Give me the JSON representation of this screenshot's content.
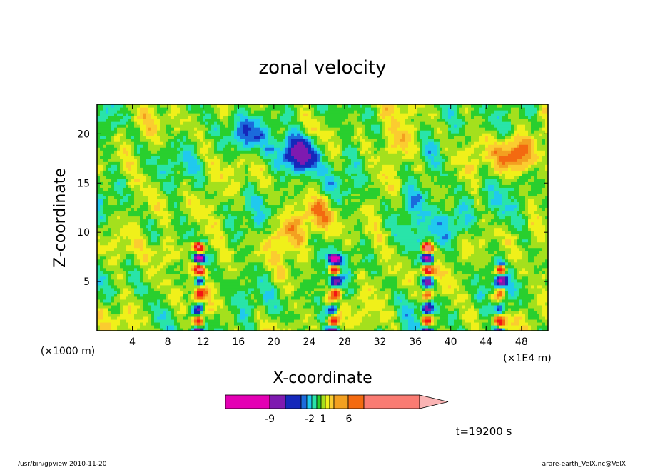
{
  "chart_data": {
    "type": "heatmap",
    "title": "zonal velocity",
    "xlabel": "X-coordinate",
    "ylabel": "Z-coordinate",
    "x_unit_left": "(×1000 m)",
    "x_unit_right": "(×1E4 m)",
    "xlim": [
      0,
      51
    ],
    "ylim": [
      0,
      23
    ],
    "x_ticks": [
      4,
      8,
      12,
      16,
      20,
      24,
      28,
      32,
      36,
      40,
      44,
      48
    ],
    "y_ticks": [
      5,
      10,
      15,
      20
    ],
    "colorbar": {
      "tick_labels": [
        "-9",
        "-2",
        "1",
        "6"
      ],
      "colors": [
        "#e400b4",
        "#7e1ab0",
        "#1528bb",
        "#1b6bdc",
        "#20c9ee",
        "#29e4a9",
        "#29cf2e",
        "#a4e01d",
        "#f0f01a",
        "#fbcc30",
        "#f3a020",
        "#f36a10",
        "#f41515",
        "#fa7b72"
      ],
      "overflow_color": "#fab4b4"
    },
    "features": [
      {
        "name": "vertical plume",
        "x": 11.5,
        "z_top": 9,
        "min_value": -9,
        "max_value": 9
      },
      {
        "name": "vertical plume",
        "x": 26.8,
        "z_top": 8,
        "min_value": -9,
        "max_value": 9
      },
      {
        "name": "vertical plume",
        "x": 37.4,
        "z_top": 9,
        "min_value": -9,
        "max_value": 6
      },
      {
        "name": "vertical plume",
        "x": 45.6,
        "z_top": 7,
        "min_value": -9,
        "max_value": 9
      },
      {
        "name": "negative blob",
        "x": 23,
        "z": 18,
        "value": -9
      },
      {
        "name": "negative blob",
        "x": 16.5,
        "z": 20,
        "value": -3
      },
      {
        "name": "negative blob",
        "x": 35.5,
        "z": 13.5,
        "value": -3
      },
      {
        "name": "negative blob",
        "x": 40.5,
        "z": 11,
        "value": -3
      },
      {
        "name": "positive blob",
        "x": 21,
        "z": 10,
        "value": 3
      },
      {
        "name": "positive blob",
        "x": 25,
        "z": 12,
        "value": 3
      },
      {
        "name": "positive blob",
        "x": 34.5,
        "z": 19,
        "value": 3
      },
      {
        "name": "positive blob",
        "x": 47.5,
        "z": 18,
        "value": 6
      },
      {
        "name": "positive blob",
        "x": 8,
        "z": 8,
        "value": 3
      }
    ],
    "time_label": "t=19200 s"
  },
  "footer": {
    "left": "/usr/bin/gpview   2010-11-20",
    "right": "arare-earth_VelX.nc@VelX"
  }
}
